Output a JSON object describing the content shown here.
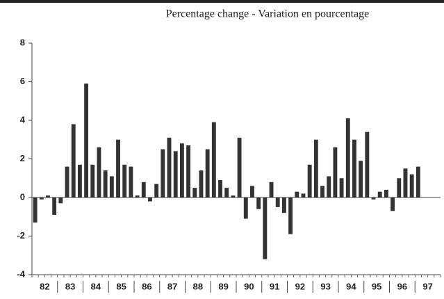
{
  "chart_data": {
    "type": "bar",
    "title": "Percentage change - Variation en pourcentage",
    "categories": [
      "82",
      null,
      null,
      null,
      "83",
      null,
      null,
      null,
      "84",
      null,
      null,
      null,
      "85",
      null,
      null,
      null,
      "86",
      null,
      null,
      null,
      "87",
      null,
      null,
      null,
      "88",
      null,
      null,
      null,
      "89",
      null,
      null,
      null,
      "90",
      null,
      null,
      null,
      "91",
      null,
      null,
      null,
      "92",
      null,
      null,
      null,
      "93",
      null,
      null,
      null,
      "94",
      null,
      null,
      null,
      "95",
      null,
      null,
      null,
      "96",
      null,
      null,
      null,
      "97",
      null,
      null,
      null
    ],
    "values": [
      -1.3,
      -0.1,
      0.1,
      -0.9,
      -0.3,
      1.6,
      3.8,
      1.7,
      5.9,
      1.7,
      2.6,
      1.4,
      1.1,
      3.0,
      1.7,
      1.6,
      0.1,
      0.8,
      -0.2,
      0.7,
      2.5,
      3.1,
      2.4,
      2.8,
      2.7,
      0.5,
      1.4,
      2.5,
      3.9,
      0.9,
      0.5,
      0.1,
      3.1,
      -1.1,
      0.6,
      -0.6,
      -3.2,
      0.8,
      -0.5,
      -0.8,
      -1.9,
      0.3,
      0.2,
      1.7,
      3.0,
      0.6,
      1.1,
      2.6,
      1.0,
      4.1,
      3.0,
      1.9,
      3.4,
      -0.1,
      0.3,
      0.4,
      -0.7,
      1.0,
      1.5,
      1.2,
      1.6,
      null,
      null,
      null
    ],
    "color": "#333333",
    "ylim": [
      -4,
      8
    ],
    "yticks": [
      -4,
      -2,
      0,
      2,
      4,
      6,
      8
    ]
  }
}
